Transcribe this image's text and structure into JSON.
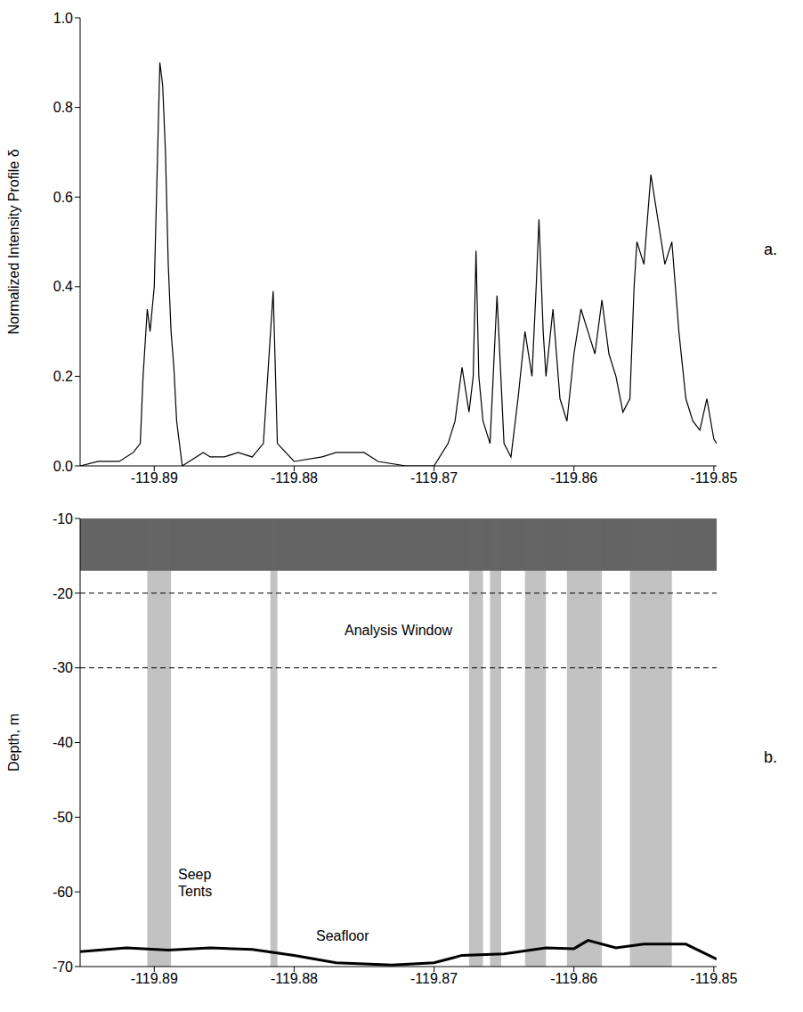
{
  "chart_data": [
    {
      "type": "line",
      "panel_label": "a.",
      "y_label": "Normalized Intensity Profile δ",
      "color": "#000000",
      "xlim": [
        -119.8953,
        -119.8498
      ],
      "xticks": [
        -119.89,
        -119.88,
        -119.87,
        -119.86,
        -119.85
      ],
      "ylim": [
        0,
        1
      ],
      "yticks": [
        {
          "value": 0,
          "label": "0.0"
        },
        0.2,
        0.4,
        0.6,
        0.8,
        {
          "value": 1,
          "label": "1.0"
        }
      ],
      "x": [
        -119.8953,
        -119.894,
        -119.8925,
        -119.8915,
        -119.891,
        -119.8908,
        -119.8905,
        -119.8903,
        -119.89,
        -119.8898,
        -119.8896,
        -119.8894,
        -119.8892,
        -119.889,
        -119.8888,
        -119.8886,
        -119.8884,
        -119.888,
        -119.887,
        -119.8865,
        -119.886,
        -119.885,
        -119.884,
        -119.883,
        -119.8822,
        -119.8815,
        -119.8812,
        -119.88,
        -119.878,
        -119.877,
        -119.875,
        -119.874,
        -119.872,
        -119.87,
        -119.869,
        -119.8685,
        -119.868,
        -119.8675,
        -119.8672,
        -119.867,
        -119.8668,
        -119.8665,
        -119.866,
        -119.8655,
        -119.865,
        -119.8645,
        -119.864,
        -119.8635,
        -119.863,
        -119.8627,
        -119.8625,
        -119.8622,
        -119.862,
        -119.8615,
        -119.861,
        -119.8605,
        -119.86,
        -119.8595,
        -119.859,
        -119.8585,
        -119.858,
        -119.8575,
        -119.857,
        -119.8565,
        -119.856,
        -119.8557,
        -119.8555,
        -119.855,
        -119.8545,
        -119.854,
        -119.8535,
        -119.853,
        -119.8525,
        -119.852,
        -119.8515,
        -119.851,
        -119.8505,
        -119.85,
        -119.8498
      ],
      "values": [
        0.0,
        0.01,
        0.01,
        0.03,
        0.05,
        0.2,
        0.35,
        0.3,
        0.4,
        0.65,
        0.9,
        0.85,
        0.7,
        0.45,
        0.3,
        0.22,
        0.1,
        0.0,
        0.02,
        0.03,
        0.02,
        0.02,
        0.03,
        0.02,
        0.05,
        0.39,
        0.05,
        0.01,
        0.02,
        0.03,
        0.03,
        0.01,
        0.0,
        0.0,
        0.05,
        0.1,
        0.22,
        0.12,
        0.2,
        0.48,
        0.2,
        0.1,
        0.05,
        0.38,
        0.05,
        0.02,
        0.15,
        0.3,
        0.2,
        0.4,
        0.55,
        0.3,
        0.2,
        0.35,
        0.15,
        0.1,
        0.25,
        0.35,
        0.3,
        0.25,
        0.37,
        0.25,
        0.2,
        0.12,
        0.15,
        0.4,
        0.5,
        0.45,
        0.65,
        0.55,
        0.45,
        0.5,
        0.3,
        0.15,
        0.1,
        0.08,
        0.15,
        0.06,
        0.05
      ]
    },
    {
      "type": "echogram",
      "panel_label": "b.",
      "y_label": "Depth, m",
      "color": "#000000",
      "xlim": [
        -119.8953,
        -119.8498
      ],
      "xticks": [
        -119.89,
        -119.88,
        -119.87,
        -119.86,
        -119.85
      ],
      "ylim": [
        -70,
        -10
      ],
      "yticks": [
        -70,
        -60,
        -50,
        -40,
        -30,
        -20,
        -10
      ],
      "seafloor": {
        "x": [
          -119.8953,
          -119.892,
          -119.889,
          -119.886,
          -119.883,
          -119.88,
          -119.877,
          -119.873,
          -119.87,
          -119.868,
          -119.865,
          -119.862,
          -119.86,
          -119.859,
          -119.857,
          -119.855,
          -119.852,
          -119.8498
        ],
        "values": [
          -68,
          -67.5,
          -67.8,
          -67.5,
          -67.7,
          -68.5,
          -69.5,
          -69.8,
          -69.5,
          -68.5,
          -68.3,
          -67.5,
          -67.6,
          -66.5,
          -67.5,
          -67,
          -67,
          -69
        ]
      },
      "plumes": [
        [
          -119.8905,
          -119.8888
        ],
        [
          -119.8817,
          -119.8812
        ],
        [
          -119.8675,
          -119.8665
        ],
        [
          -119.866,
          -119.8652
        ],
        [
          -119.8635,
          -119.862
        ],
        [
          -119.8605,
          -119.858
        ],
        [
          -119.856,
          -119.853
        ]
      ],
      "surface_clutter": [
        -17,
        -10
      ],
      "analysis_window": [
        -30,
        -20
      ],
      "annotations": [
        "Analysis Window",
        "Seep Tents",
        "Seafloor"
      ]
    }
  ]
}
